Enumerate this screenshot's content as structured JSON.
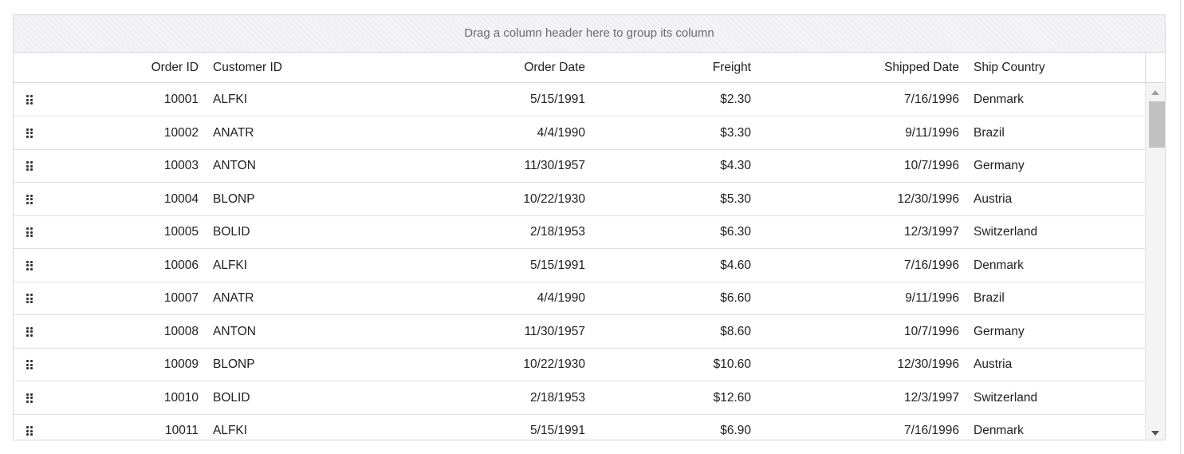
{
  "group_area": {
    "placeholder": "Drag a column header here to group its column"
  },
  "columns": {
    "order_id": "Order ID",
    "customer_id": "Customer ID",
    "order_date": "Order Date",
    "freight": "Freight",
    "shipped_date": "Shipped Date",
    "ship_country": "Ship Country"
  },
  "rows": [
    {
      "order_id": "10001",
      "customer_id": "ALFKI",
      "order_date": "5/15/1991",
      "freight": "$2.30",
      "shipped_date": "7/16/1996",
      "ship_country": "Denmark"
    },
    {
      "order_id": "10002",
      "customer_id": "ANATR",
      "order_date": "4/4/1990",
      "freight": "$3.30",
      "shipped_date": "9/11/1996",
      "ship_country": "Brazil"
    },
    {
      "order_id": "10003",
      "customer_id": "ANTON",
      "order_date": "11/30/1957",
      "freight": "$4.30",
      "shipped_date": "10/7/1996",
      "ship_country": "Germany"
    },
    {
      "order_id": "10004",
      "customer_id": "BLONP",
      "order_date": "10/22/1930",
      "freight": "$5.30",
      "shipped_date": "12/30/1996",
      "ship_country": "Austria"
    },
    {
      "order_id": "10005",
      "customer_id": "BOLID",
      "order_date": "2/18/1953",
      "freight": "$6.30",
      "shipped_date": "12/3/1997",
      "ship_country": "Switzerland"
    },
    {
      "order_id": "10006",
      "customer_id": "ALFKI",
      "order_date": "5/15/1991",
      "freight": "$4.60",
      "shipped_date": "7/16/1996",
      "ship_country": "Denmark"
    },
    {
      "order_id": "10007",
      "customer_id": "ANATR",
      "order_date": "4/4/1990",
      "freight": "$6.60",
      "shipped_date": "9/11/1996",
      "ship_country": "Brazil"
    },
    {
      "order_id": "10008",
      "customer_id": "ANTON",
      "order_date": "11/30/1957",
      "freight": "$8.60",
      "shipped_date": "10/7/1996",
      "ship_country": "Germany"
    },
    {
      "order_id": "10009",
      "customer_id": "BLONP",
      "order_date": "10/22/1930",
      "freight": "$10.60",
      "shipped_date": "12/30/1996",
      "ship_country": "Austria"
    },
    {
      "order_id": "10010",
      "customer_id": "BOLID",
      "order_date": "2/18/1953",
      "freight": "$12.60",
      "shipped_date": "12/3/1997",
      "ship_country": "Switzerland"
    },
    {
      "order_id": "10011",
      "customer_id": "ALFKI",
      "order_date": "5/15/1991",
      "freight": "$6.90",
      "shipped_date": "7/16/1996",
      "ship_country": "Denmark"
    }
  ],
  "icons": {
    "row_drag": "drag-handle-icon",
    "scroll_up": "arrow-up-icon",
    "scroll_down": "arrow-down-icon"
  }
}
